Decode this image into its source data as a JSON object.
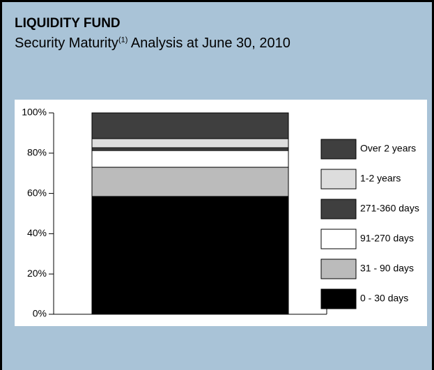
{
  "chart_data": {
    "type": "stacked_bar",
    "title": "LIQUIDITY FUND",
    "subtitle": {
      "text": "Security Maturity",
      "superscript": "(1)",
      "rest": "Analysis at June 30, 2010"
    },
    "categories": [
      null
    ],
    "series": [
      {
        "name": "0 - 30 days",
        "color": "#000000",
        "values": [
          58.5
        ]
      },
      {
        "name": "31 - 90 days",
        "color": "#bbbbbb",
        "values": [
          14.5
        ]
      },
      {
        "name": "91-270 days",
        "color": "#ffffff",
        "values": [
          8.3
        ]
      },
      {
        "name": "271-360 days",
        "color": "#3f3f3f",
        "values": [
          1.4
        ]
      },
      {
        "name": "1-2 years",
        "color": "#dddddd",
        "values": [
          4.5
        ]
      },
      {
        "name": "Over 2 years",
        "color": "#3f3f3f",
        "values": [
          12.8
        ]
      }
    ],
    "ylim": [
      0,
      100
    ],
    "yticks": [
      {
        "value": 0,
        "label": "0%"
      },
      {
        "value": 20,
        "label": "20%"
      },
      {
        "value": 40,
        "label": "40%"
      },
      {
        "value": 60,
        "label": "60%"
      },
      {
        "value": 80,
        "label": "80%"
      },
      {
        "value": 100,
        "label": "100%"
      }
    ],
    "legend": "right"
  }
}
